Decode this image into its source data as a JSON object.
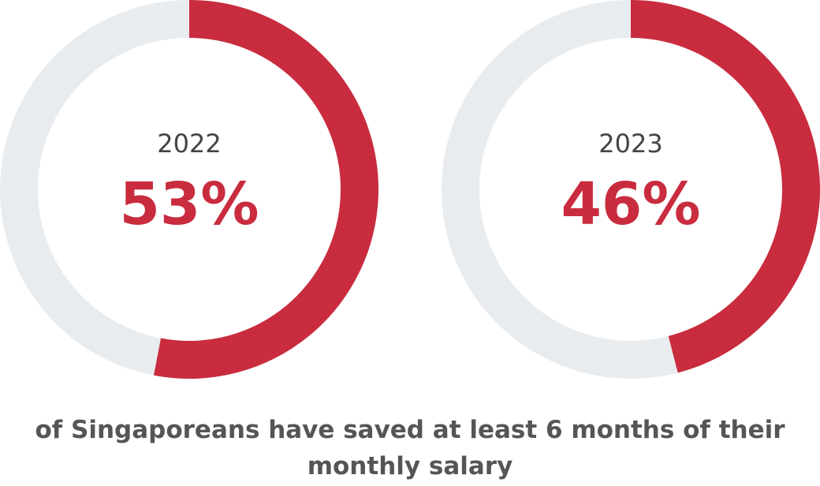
{
  "chart_data": [
    {
      "type": "donut",
      "title": "2022",
      "values": [
        53
      ],
      "value_labels": [
        "53%"
      ],
      "color": "#c92c3e",
      "track_color": "#e9ecef"
    },
    {
      "type": "donut",
      "title": "2023",
      "values": [
        46
      ],
      "value_labels": [
        "46%"
      ],
      "color": "#c92c3e",
      "track_color": "#e9ecef"
    }
  ],
  "caption": "of Singaporeans have saved at least 6 months of their monthly salary"
}
